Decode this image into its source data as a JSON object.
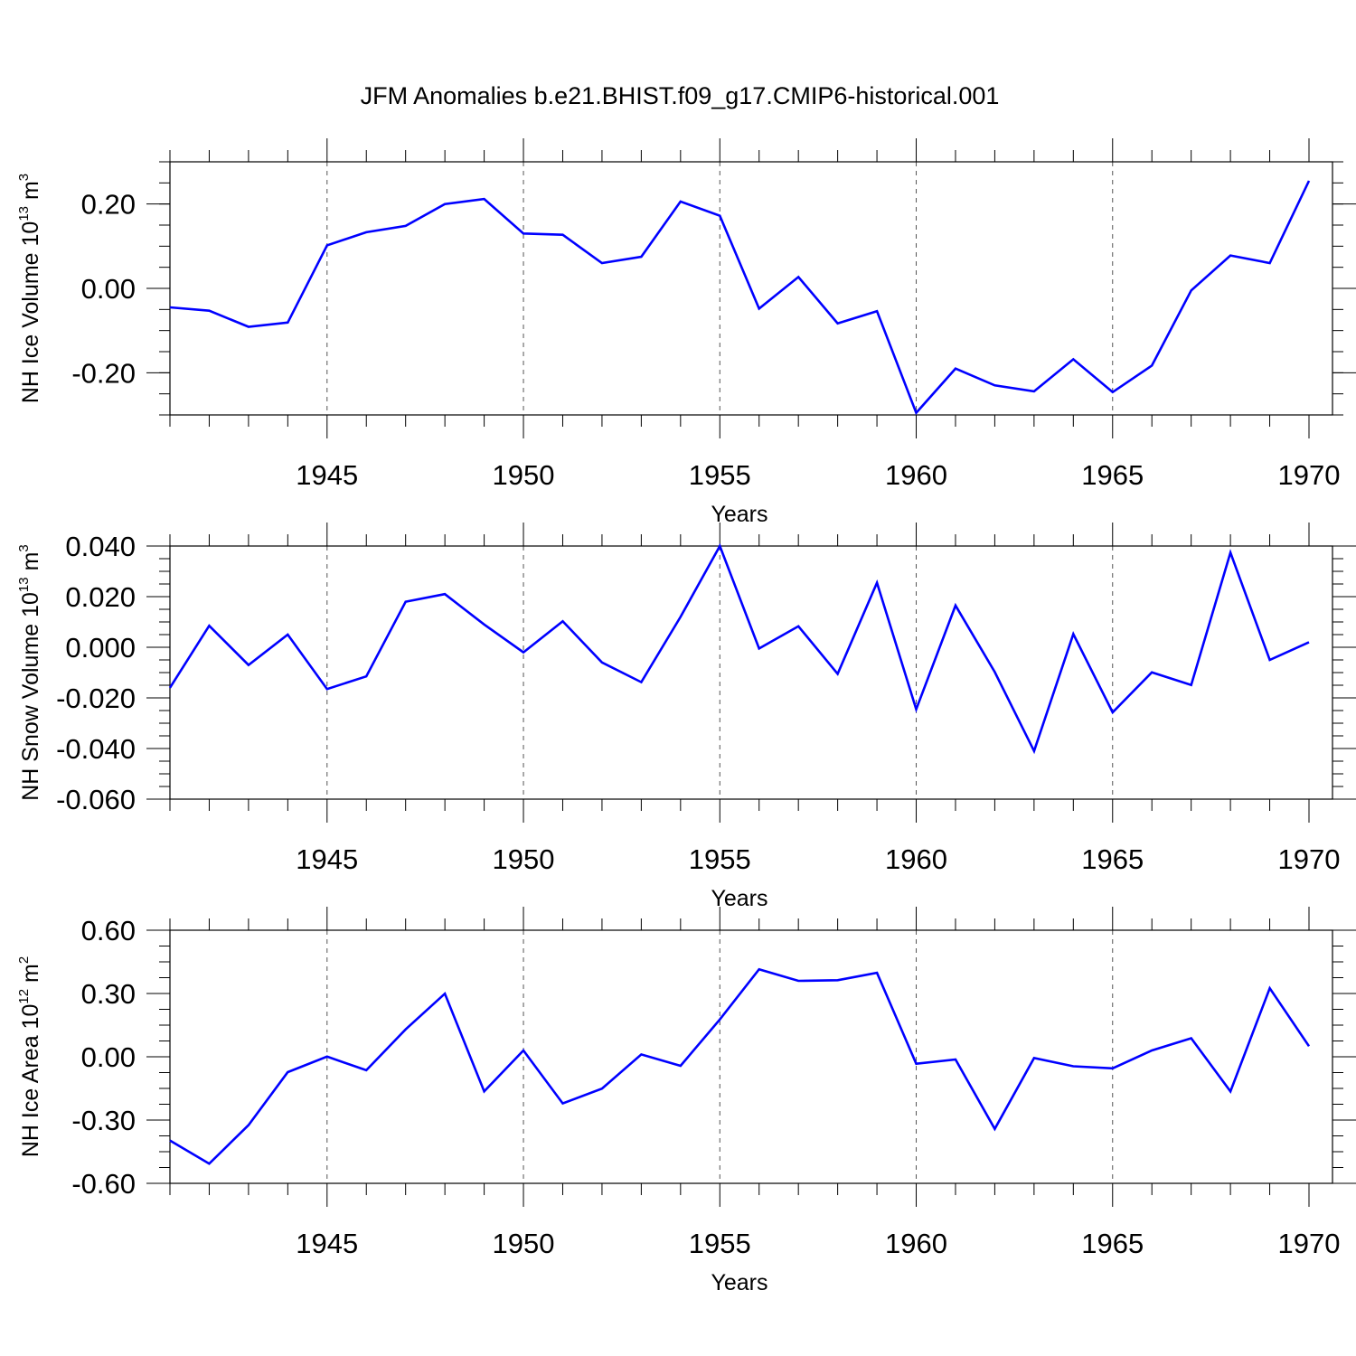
{
  "figure": {
    "title": "JFM Anomalies b.e21.BHIST.f09_g17.CMIP6-historical.001"
  },
  "chart_data": [
    {
      "type": "line",
      "title": "",
      "xlabel": "Years",
      "ylabel": "NH Ice Volume 10",
      "ylabel_sup": "13",
      "ylabel_unit": "m",
      "ylabel_unit_sup": "3",
      "xlim": [
        1941,
        1970
      ],
      "ylim": [
        -0.3,
        0.3
      ],
      "xticks": [
        1945,
        1950,
        1955,
        1960,
        1965,
        1970
      ],
      "xtick_labels": [
        "1945",
        "1950",
        "1955",
        "1960",
        "1965",
        "1970"
      ],
      "yticks": [
        0.2,
        0.0,
        -0.2
      ],
      "ytick_labels": [
        "0.20",
        "0.00",
        "-0.20"
      ],
      "grid": "vertical dashed at major x ticks",
      "color": "#0000ff",
      "x": [
        1941,
        1942,
        1943,
        1944,
        1945,
        1946,
        1947,
        1948,
        1949,
        1950,
        1951,
        1952,
        1953,
        1954,
        1955,
        1956,
        1957,
        1958,
        1959,
        1960,
        1961,
        1962,
        1963,
        1964,
        1965,
        1966,
        1967,
        1968,
        1969,
        1970
      ],
      "values": [
        -0.045,
        -0.053,
        -0.091,
        -0.081,
        0.102,
        0.133,
        0.148,
        0.2,
        0.212,
        0.13,
        0.127,
        0.06,
        0.075,
        0.206,
        0.172,
        -0.048,
        0.027,
        -0.083,
        -0.054,
        -0.295,
        -0.19,
        -0.23,
        -0.244,
        -0.168,
        -0.246,
        -0.183,
        -0.005,
        0.078,
        0.06,
        0.255
      ]
    },
    {
      "type": "line",
      "title": "",
      "xlabel": "Years",
      "ylabel": "NH Snow Volume 10",
      "ylabel_sup": "13",
      "ylabel_unit": "m",
      "ylabel_unit_sup": "3",
      "xlim": [
        1941,
        1970
      ],
      "ylim": [
        -0.06,
        0.04
      ],
      "xticks": [
        1945,
        1950,
        1955,
        1960,
        1965,
        1970
      ],
      "xtick_labels": [
        "1945",
        "1950",
        "1955",
        "1960",
        "1965",
        "1970"
      ],
      "yticks": [
        0.04,
        0.02,
        0.0,
        -0.02,
        -0.04,
        -0.06
      ],
      "ytick_labels": [
        "0.040",
        "0.020",
        "0.000",
        "-0.020",
        "-0.040",
        "-0.060"
      ],
      "grid": "vertical dashed at major x ticks",
      "color": "#0000ff",
      "x": [
        1941,
        1942,
        1943,
        1944,
        1945,
        1946,
        1947,
        1948,
        1949,
        1950,
        1951,
        1952,
        1953,
        1954,
        1955,
        1956,
        1957,
        1958,
        1959,
        1960,
        1961,
        1962,
        1963,
        1964,
        1965,
        1966,
        1967,
        1968,
        1969,
        1970
      ],
      "values": [
        -0.016,
        0.0085,
        -0.007,
        0.005,
        -0.0165,
        -0.0115,
        0.018,
        0.021,
        0.009,
        -0.002,
        0.0103,
        -0.006,
        -0.0138,
        0.012,
        0.04,
        -0.0005,
        0.0083,
        -0.0105,
        0.0255,
        -0.0245,
        0.0165,
        -0.0098,
        -0.041,
        0.0052,
        -0.0257,
        -0.0099,
        -0.0149,
        0.0374,
        -0.005,
        0.002
      ]
    },
    {
      "type": "line",
      "title": "",
      "xlabel": "Years",
      "ylabel": "NH Ice Area 10",
      "ylabel_sup": "12",
      "ylabel_unit": "m",
      "ylabel_unit_sup": "2",
      "xlim": [
        1941,
        1970
      ],
      "ylim": [
        -0.6,
        0.6
      ],
      "xticks": [
        1945,
        1950,
        1955,
        1960,
        1965,
        1970
      ],
      "xtick_labels": [
        "1945",
        "1950",
        "1955",
        "1960",
        "1965",
        "1970"
      ],
      "yticks": [
        0.6,
        0.3,
        0.0,
        -0.3,
        -0.6
      ],
      "ytick_labels": [
        "0.60",
        "0.30",
        "0.00",
        "-0.30",
        "-0.60"
      ],
      "grid": "vertical dashed at major x ticks",
      "color": "#0000ff",
      "x": [
        1941,
        1942,
        1943,
        1944,
        1945,
        1946,
        1947,
        1948,
        1949,
        1950,
        1951,
        1952,
        1953,
        1954,
        1955,
        1956,
        1957,
        1958,
        1959,
        1960,
        1961,
        1962,
        1963,
        1964,
        1965,
        1966,
        1967,
        1968,
        1969,
        1970
      ],
      "values": [
        -0.397,
        -0.507,
        -0.324,
        -0.073,
        0.001,
        -0.064,
        0.13,
        0.299,
        -0.164,
        0.03,
        -0.221,
        -0.151,
        0.011,
        -0.043,
        0.177,
        0.415,
        0.36,
        0.363,
        0.398,
        -0.033,
        -0.013,
        -0.342,
        -0.006,
        -0.045,
        -0.055,
        0.03,
        0.088,
        -0.164,
        0.325,
        0.05
      ]
    }
  ]
}
